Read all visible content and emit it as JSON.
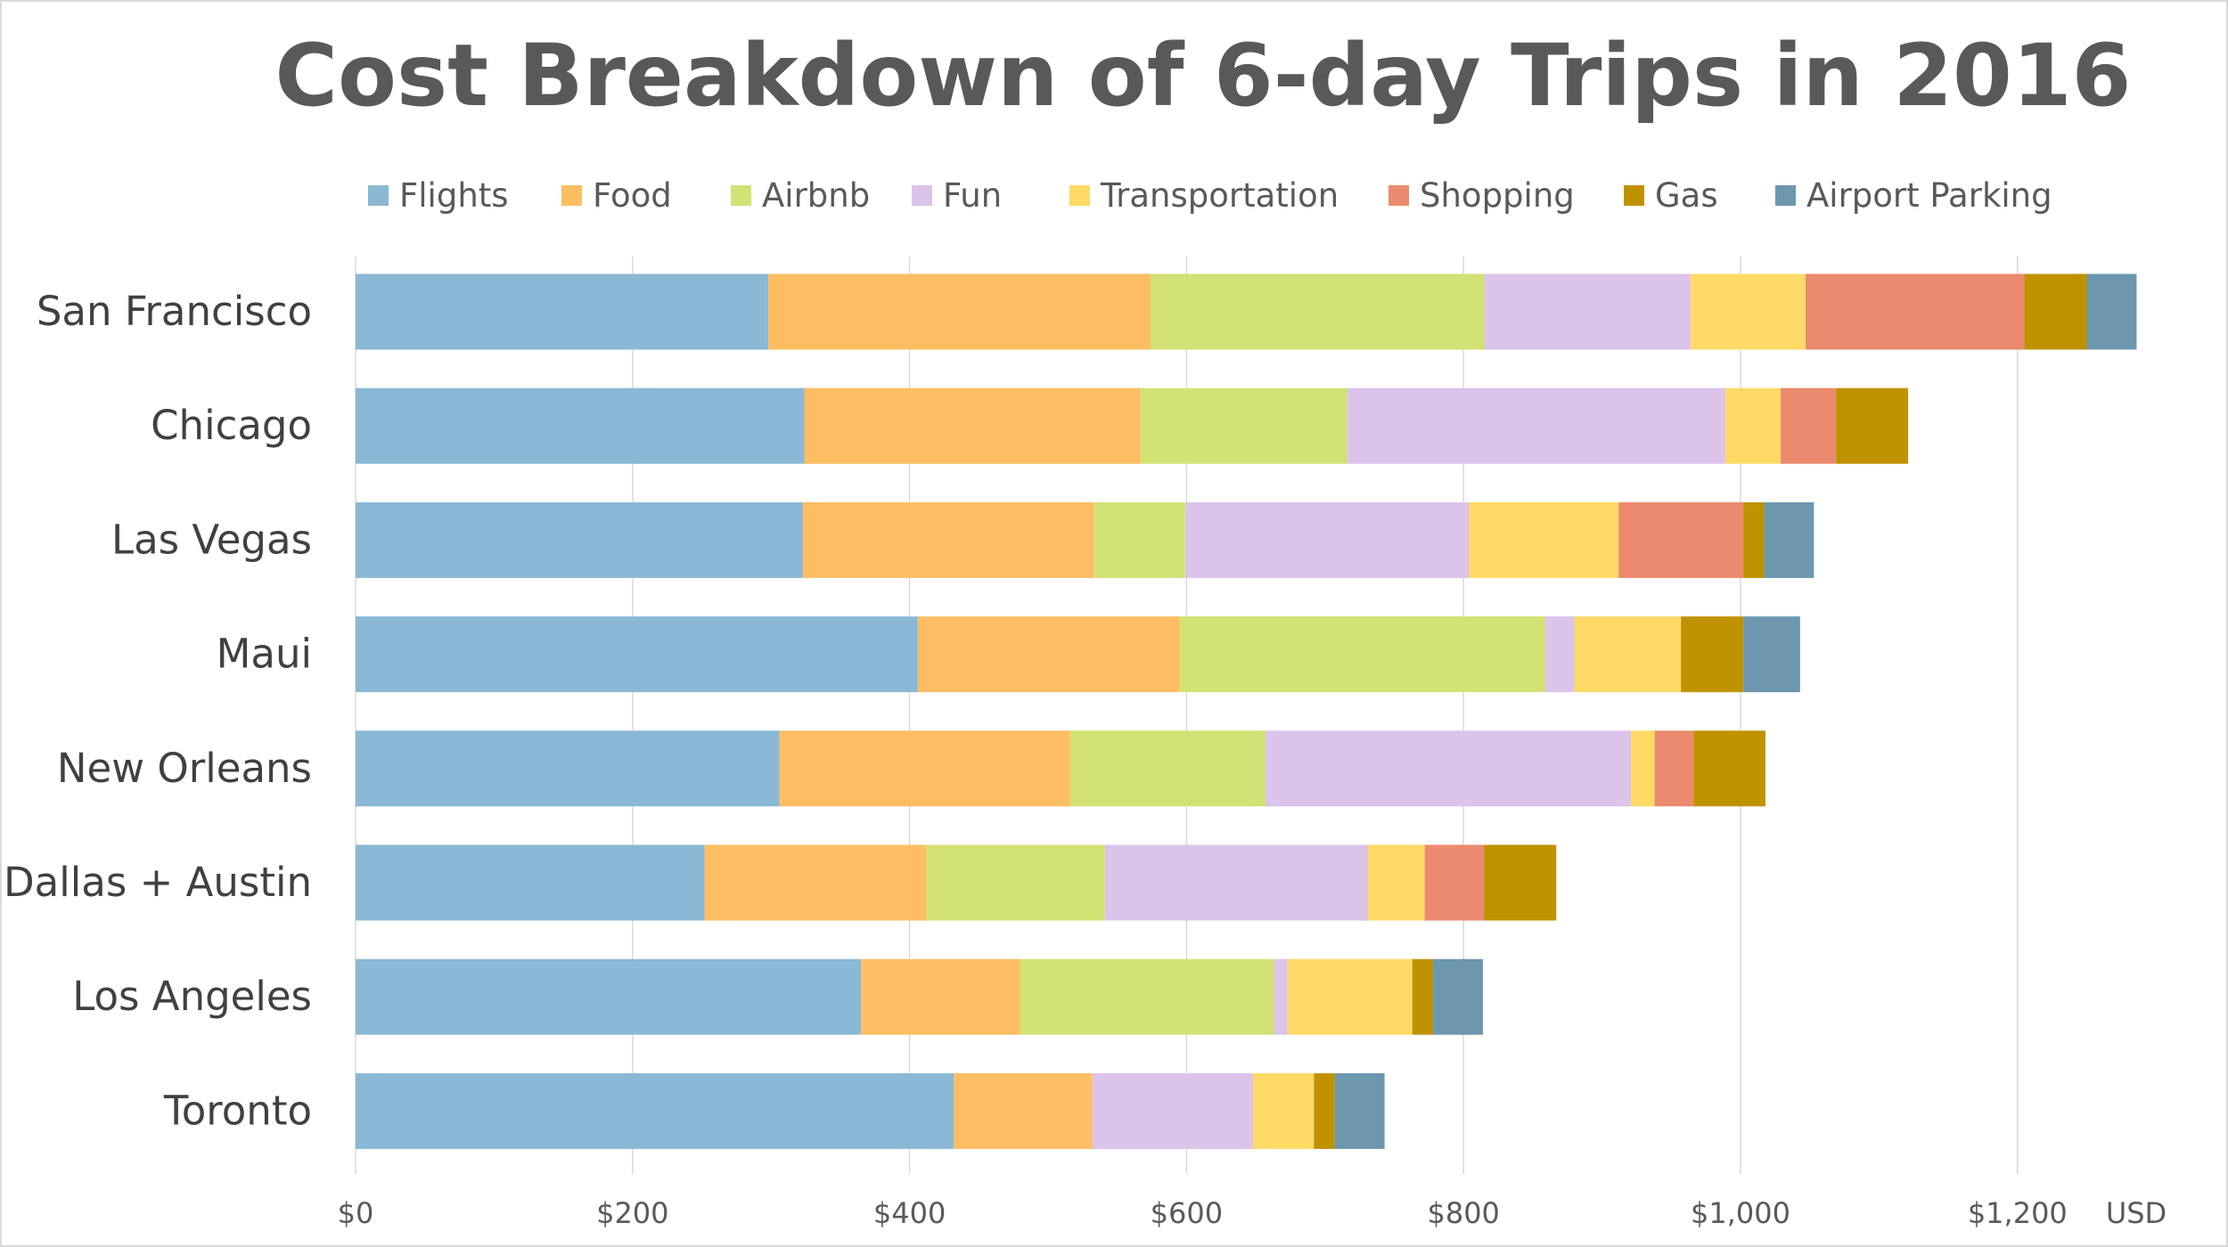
{
  "chart_data": {
    "type": "bar",
    "orientation": "horizontal",
    "stacked": true,
    "title": "Cost Breakdown of 6-day Trips in 2016",
    "xlabel": "USD",
    "ylabel": "",
    "xlim": [
      0,
      1300
    ],
    "xticks": [
      0,
      200,
      400,
      600,
      800,
      1000,
      1200
    ],
    "xtick_labels": [
      "$0",
      "$200",
      "$400",
      "$600",
      "$800",
      "$1,000",
      "$1,200"
    ],
    "grid": true,
    "legend_position": "top",
    "categories": [
      "San Francisco",
      "Chicago",
      "Las Vegas",
      "Maui",
      "New Orleans",
      "Dallas + Austin",
      "Los Angeles",
      "Toronto"
    ],
    "series": [
      {
        "name": "Flights",
        "color": "#8BB8D4",
        "values": [
          298,
          324,
          323,
          406,
          306,
          252,
          365,
          432
        ]
      },
      {
        "name": "Food",
        "color": "#FDBE63",
        "values": [
          276,
          243,
          210,
          189,
          210,
          160,
          115,
          100
        ]
      },
      {
        "name": "Airbnb",
        "color": "#D3E274",
        "values": [
          241,
          149,
          66,
          264,
          141,
          129,
          183,
          0
        ]
      },
      {
        "name": "Fun",
        "color": "#DCC3EA",
        "values": [
          149,
          273,
          205,
          21,
          264,
          190,
          10,
          116
        ]
      },
      {
        "name": "Transportation",
        "color": "#FFD966",
        "values": [
          83,
          40,
          108,
          77,
          17,
          41,
          90,
          44
        ]
      },
      {
        "name": "Shopping",
        "color": "#EB8A6E",
        "values": [
          158,
          40,
          90,
          0,
          28,
          43,
          0,
          0
        ]
      },
      {
        "name": "Gas",
        "color": "#C09200",
        "values": [
          45,
          52,
          15,
          45,
          52,
          52,
          15,
          15
        ]
      },
      {
        "name": "Airport Parking",
        "color": "#6D97AE",
        "values": [
          36,
          0,
          36,
          41,
          0,
          0,
          36,
          36
        ]
      }
    ]
  }
}
